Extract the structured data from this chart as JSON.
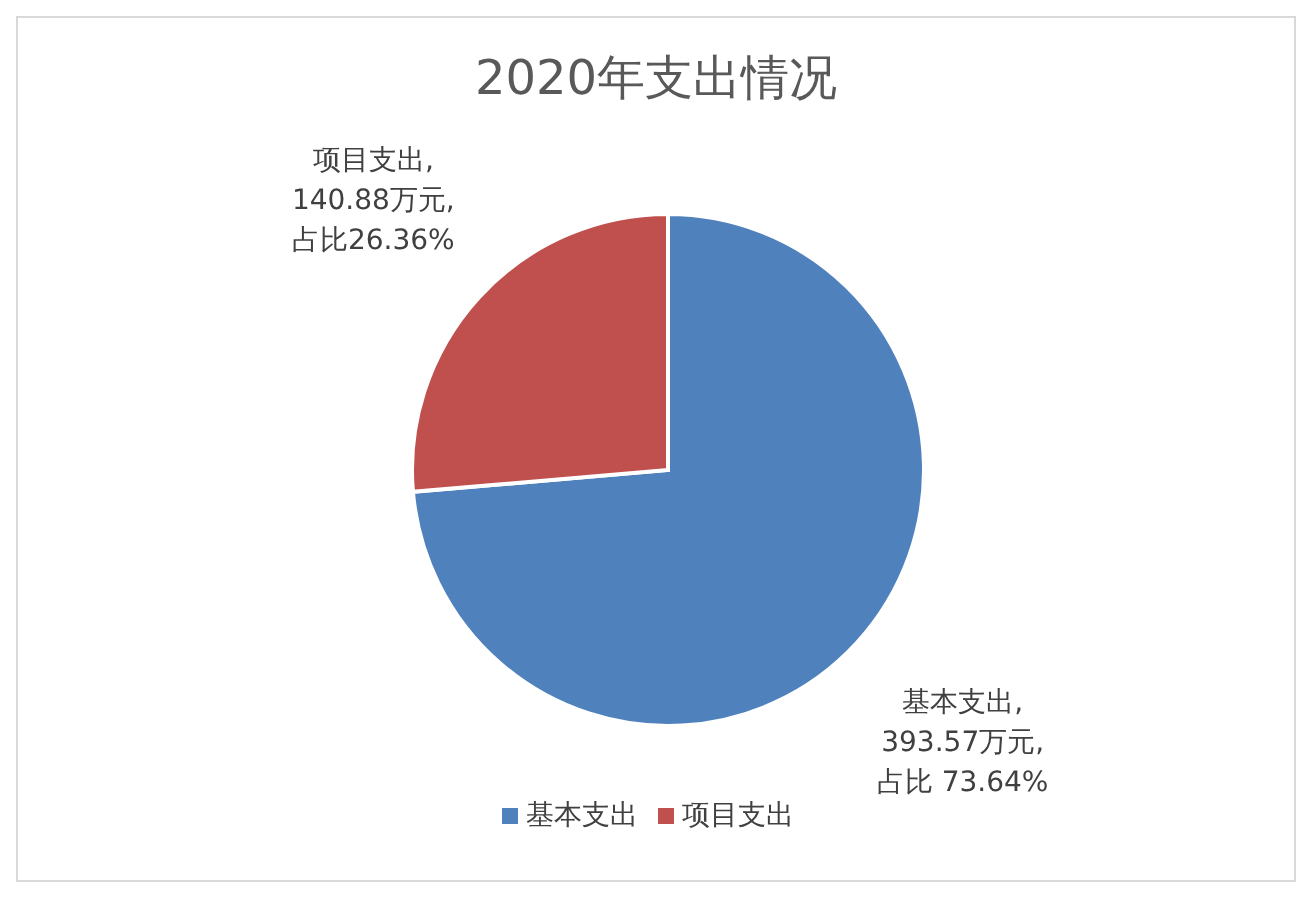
{
  "chart_data": {
    "type": "pie",
    "title": "2020年支出情况",
    "categories": [
      "基本支出",
      "项目支出"
    ],
    "values": [
      393.57,
      140.88
    ],
    "colors": [
      "#4f81bd",
      "#c0504d"
    ],
    "value_labels": [
      "基本支出,393.57万元,占比 73.64%",
      "项目支出,140.88万元,占比26.36%"
    ],
    "legend": "bottom"
  }
}
